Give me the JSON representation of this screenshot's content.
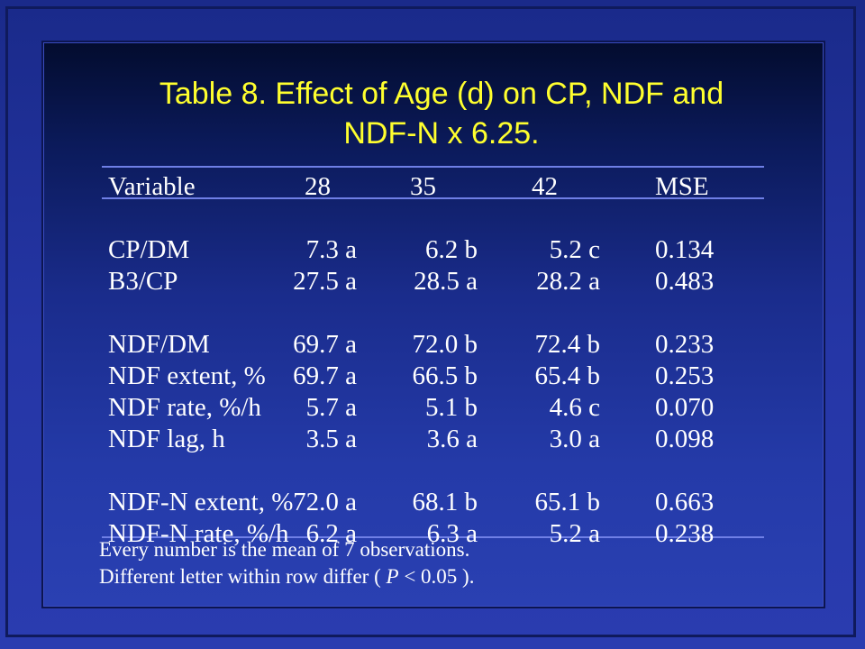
{
  "title": {
    "line1": "Table 8. Effect of Age (d) on CP, NDF and",
    "line2": "NDF-N x 6.25."
  },
  "table": {
    "headers": [
      "Variable",
      "28",
      "35",
      "42",
      "MSE"
    ],
    "groups": [
      [
        [
          "CP/DM",
          "7.3 a",
          "6.2 b",
          "5.2 c",
          "0.134"
        ],
        [
          "B3/CP",
          "27.5 a",
          "28.5 a",
          "28.2 a",
          "0.483"
        ]
      ],
      [
        [
          "NDF/DM",
          "69.7 a",
          "72.0 b",
          "72.4 b",
          "0.233"
        ],
        [
          "NDF extent, %",
          "69.7 a",
          "66.5 b",
          "65.4 b",
          "0.253"
        ],
        [
          "NDF rate, %/h",
          "5.7 a",
          "5.1 b",
          "4.6 c",
          "0.070"
        ],
        [
          "NDF lag, h",
          "3.5 a",
          "3.6 a",
          "3.0 a",
          "0.098"
        ]
      ],
      [
        [
          "NDF-N extent, %",
          "72.0 a",
          "68.1 b",
          "65.1 b",
          "0.663"
        ],
        [
          "NDF-N rate, %/h",
          "6.2 a",
          "6.3 a",
          "5.2 a",
          "0.238"
        ]
      ]
    ]
  },
  "notes": {
    "line1": "Every number is the mean of 7 observations.",
    "line2_prefix": "Different letter within row differ ( ",
    "line2_p": "P",
    "line2_suffix": " < 0.05 )."
  },
  "colors": {
    "title": "#ffff2e",
    "text": "#ffffff",
    "rule": "#6f7fe6"
  }
}
